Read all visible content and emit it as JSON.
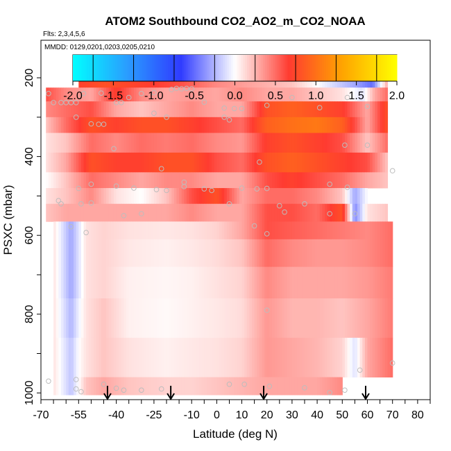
{
  "chart_data": {
    "type": "heatmap",
    "title": "ATOM2 Southbound CO2_AO2_m_CO2_NOAA",
    "flights_note": "Flts: 2,3,4,5,6",
    "dates_note": "MMDD: 0129,0201,0203,0205,0210",
    "xlabel": "Latitude (deg N)",
    "ylabel": "PSXC (mbar)",
    "xlim": [
      -70,
      85
    ],
    "ylim": [
      1010,
      140
    ],
    "x_ticks": [
      "-70",
      "-55",
      "-40",
      "-25",
      "-10",
      "0",
      "10",
      "20",
      "30",
      "40",
      "50",
      "60",
      "70",
      "80"
    ],
    "x_tick_values": [
      -70,
      -55,
      -40,
      -25,
      -10,
      0,
      10,
      20,
      30,
      40,
      50,
      60,
      70,
      80
    ],
    "y_ticks": [
      "200",
      "400",
      "600",
      "800",
      "1000"
    ],
    "y_tick_values": [
      200,
      400,
      600,
      800,
      1000
    ],
    "colorbar": {
      "range": [
        -2.0,
        2.0
      ],
      "ticks": [
        "-2.0",
        "-1.5",
        "-1.0",
        "-0.5",
        "0.0",
        "0.5",
        "1.0",
        "1.5",
        "2.0"
      ],
      "tick_values": [
        -2.0,
        -1.5,
        -1.0,
        -0.5,
        0.0,
        0.5,
        1.0,
        1.5,
        2.0
      ],
      "colors": [
        "#00ffff",
        "#2a9dff",
        "#2f3bff",
        "#ffffff",
        "#ff3b30",
        "#ffa500",
        "#ffff00"
      ]
    },
    "layers": [
      {
        "p_top": 175,
        "p_bot": 225,
        "lat": [
          -55,
          -45,
          -30,
          -15,
          0,
          15,
          30,
          45,
          55,
          62,
          68
        ],
        "values": [
          0.7,
          0.8,
          0.7,
          0.6,
          0.4,
          0.3,
          0.2,
          -0.1,
          -0.3,
          -0.5,
          0.3
        ]
      },
      {
        "p_top": 225,
        "p_bot": 260,
        "lat": [
          -68,
          -60,
          -50,
          -40,
          -30,
          -20,
          -10,
          0,
          10,
          20,
          30,
          40,
          50,
          58,
          63,
          68
        ],
        "values": [
          0.6,
          0.4,
          0.3,
          0.7,
          0.4,
          0.3,
          0.35,
          0.3,
          0.4,
          0.3,
          0.3,
          0.2,
          0.1,
          -0.1,
          0.3,
          0.5
        ]
      },
      {
        "p_top": 260,
        "p_bot": 300,
        "lat": [
          -68,
          -60,
          -50,
          -40,
          -30,
          -20,
          -10,
          0,
          10,
          20,
          30,
          40,
          50,
          60,
          68
        ],
        "values": [
          0.4,
          0.5,
          0.6,
          0.3,
          0.2,
          0.3,
          0.4,
          0.3,
          0.3,
          0.8,
          0.9,
          0.8,
          0.7,
          0.3,
          0.8
        ]
      },
      {
        "p_top": 300,
        "p_bot": 340,
        "lat": [
          -68,
          -60,
          -50,
          -40,
          -30,
          -20,
          -10,
          0,
          10,
          20,
          30,
          40,
          50,
          60,
          68
        ],
        "values": [
          0.2,
          0.5,
          0.8,
          0.7,
          0.8,
          0.8,
          0.7,
          0.6,
          0.5,
          0.9,
          1.0,
          1.05,
          0.9,
          0.3,
          0.8
        ]
      },
      {
        "p_top": 340,
        "p_bot": 390,
        "lat": [
          -68,
          -60,
          -50,
          -40,
          -30,
          -20,
          -10,
          0,
          10,
          20,
          30,
          40,
          50,
          60,
          68
        ],
        "values": [
          0.1,
          0.2,
          0.5,
          0.4,
          0.5,
          0.45,
          0.5,
          0.4,
          0.35,
          0.7,
          0.8,
          0.7,
          0.6,
          0.2,
          0.5
        ]
      },
      {
        "p_top": 390,
        "p_bot": 440,
        "lat": [
          -68,
          -60,
          -50,
          -40,
          -30,
          -20,
          -10,
          0,
          10,
          20,
          30,
          40,
          50,
          60,
          68
        ],
        "values": [
          0.1,
          0.3,
          0.8,
          0.7,
          0.7,
          0.8,
          0.8,
          0.6,
          0.5,
          0.8,
          0.9,
          0.8,
          0.7,
          0.6,
          0.2
        ]
      },
      {
        "p_top": 440,
        "p_bot": 480,
        "lat": [
          -68,
          -60,
          -50,
          -40,
          -30,
          -20,
          -10,
          0,
          10,
          20,
          30,
          40,
          50,
          60,
          68
        ],
        "values": [
          0.0,
          0.2,
          0.5,
          0.4,
          0.3,
          0.4,
          0.4,
          0.3,
          0.3,
          0.6,
          0.7,
          0.6,
          0.5,
          0.3,
          0.2
        ]
      },
      {
        "p_top": 480,
        "p_bot": 520,
        "lat": [
          -68,
          -60,
          -50,
          -40,
          -30,
          -20,
          -10,
          0,
          10,
          20,
          30,
          40,
          50,
          55,
          60
        ],
        "values": [
          0.1,
          0.2,
          0.4,
          0.1,
          0.0,
          0.2,
          0.6,
          0.8,
          0.3,
          0.5,
          0.5,
          0.4,
          0.2,
          -0.3,
          0.0
        ]
      },
      {
        "p_top": 520,
        "p_bot": 565,
        "lat": [
          -68,
          -60,
          -50,
          -40,
          -30,
          -20,
          -10,
          0,
          10,
          20,
          30,
          40,
          50,
          55,
          60,
          68
        ],
        "values": [
          0.2,
          0.3,
          0.3,
          0.3,
          0.3,
          0.3,
          0.4,
          0.3,
          0.3,
          0.6,
          0.6,
          0.5,
          0.8,
          -0.4,
          0.1,
          0.2
        ]
      },
      {
        "p_top": 565,
        "p_bot": 610,
        "lat": [
          -65,
          -58,
          -55,
          -52,
          -45,
          -35,
          -20,
          -10,
          0,
          10,
          20,
          30,
          40,
          50,
          60,
          70
        ],
        "values": [
          0.1,
          -0.3,
          -0.1,
          0.1,
          0.15,
          0.1,
          0.08,
          0.1,
          0.15,
          0.3,
          0.6,
          0.55,
          0.5,
          0.45,
          0.4,
          0.5
        ]
      },
      {
        "p_top": 610,
        "p_bot": 680,
        "lat": [
          -65,
          -58,
          -55,
          -52,
          -45,
          -35,
          -20,
          -10,
          0,
          10,
          20,
          30,
          40,
          50,
          60,
          70
        ],
        "values": [
          0.1,
          -0.3,
          -0.1,
          0.1,
          0.15,
          0.08,
          0.05,
          0.08,
          0.12,
          0.2,
          0.5,
          0.4,
          0.35,
          0.35,
          0.4,
          0.5
        ]
      },
      {
        "p_top": 680,
        "p_bot": 760,
        "lat": [
          -65,
          -58,
          -55,
          -52,
          -45,
          -35,
          -20,
          -10,
          0,
          10,
          20,
          30,
          40,
          50,
          60,
          70
        ],
        "values": [
          0.1,
          -0.3,
          -0.1,
          0.1,
          0.15,
          0.05,
          0.03,
          0.05,
          0.1,
          0.15,
          0.4,
          0.3,
          0.3,
          0.3,
          0.35,
          0.45
        ]
      },
      {
        "p_top": 760,
        "p_bot": 860,
        "lat": [
          -65,
          -58,
          -55,
          -52,
          -45,
          -35,
          -20,
          -10,
          0,
          10,
          20,
          30,
          40,
          50,
          60,
          70
        ],
        "values": [
          0.1,
          -0.25,
          -0.05,
          0.1,
          0.2,
          0.05,
          0.02,
          0.05,
          0.08,
          0.12,
          0.35,
          0.25,
          0.25,
          0.2,
          0.3,
          0.45
        ]
      },
      {
        "p_top": 860,
        "p_bot": 960,
        "lat": [
          -65,
          -58,
          -55,
          -52,
          -45,
          -35,
          -20,
          -10,
          0,
          10,
          20,
          30,
          40,
          50,
          55,
          60,
          70
        ],
        "values": [
          0.1,
          -0.2,
          0.0,
          0.1,
          0.2,
          0.1,
          0.05,
          0.08,
          0.1,
          0.15,
          0.35,
          0.3,
          0.25,
          0.15,
          -0.1,
          0.3,
          0.5
        ]
      },
      {
        "p_top": 960,
        "p_bot": 1005,
        "lat": [
          -65,
          -58,
          -55,
          -52,
          -45,
          -35,
          -20,
          -10,
          0,
          10,
          20,
          30,
          40,
          50
        ],
        "values": [
          0.1,
          -0.2,
          0.0,
          0.2,
          0.3,
          0.2,
          0.15,
          0.15,
          0.2,
          0.25,
          0.3,
          0.3,
          0.3,
          0.4
        ]
      }
    ],
    "sample_points": [
      {
        "lat": -67,
        "p": 240
      },
      {
        "lat": -65,
        "p": 263
      },
      {
        "lat": -62,
        "p": 263
      },
      {
        "lat": -60,
        "p": 263
      },
      {
        "lat": -58,
        "p": 263
      },
      {
        "lat": -56,
        "p": 263
      },
      {
        "lat": -53,
        "p": 240
      },
      {
        "lat": -49,
        "p": 202
      },
      {
        "lat": -46,
        "p": 239
      },
      {
        "lat": -40,
        "p": 263
      },
      {
        "lat": -38,
        "p": 263
      },
      {
        "lat": -35,
        "p": 250
      },
      {
        "lat": -30,
        "p": 240
      },
      {
        "lat": -25,
        "p": 238
      },
      {
        "lat": -18,
        "p": 230
      },
      {
        "lat": -16,
        "p": 227
      },
      {
        "lat": -14,
        "p": 228
      },
      {
        "lat": -12,
        "p": 227
      },
      {
        "lat": -10,
        "p": 228
      },
      {
        "lat": -5,
        "p": 262
      },
      {
        "lat": 3,
        "p": 277
      },
      {
        "lat": 7,
        "p": 278
      },
      {
        "lat": 10,
        "p": 278
      },
      {
        "lat": 20,
        "p": 270
      },
      {
        "lat": 30,
        "p": 250
      },
      {
        "lat": 41,
        "p": 276
      },
      {
        "lat": 52,
        "p": 250
      },
      {
        "lat": 60,
        "p": 273
      },
      {
        "lat": -56,
        "p": 300
      },
      {
        "lat": -50,
        "p": 317
      },
      {
        "lat": -47,
        "p": 318
      },
      {
        "lat": -45,
        "p": 318
      },
      {
        "lat": -25,
        "p": 290
      },
      {
        "lat": -20,
        "p": 300
      },
      {
        "lat": 3,
        "p": 300
      },
      {
        "lat": 5,
        "p": 307
      },
      {
        "lat": -41,
        "p": 380
      },
      {
        "lat": 17,
        "p": 414
      },
      {
        "lat": 51,
        "p": 371
      },
      {
        "lat": 60,
        "p": 371
      },
      {
        "lat": 70,
        "p": 436
      },
      {
        "lat": -22,
        "p": 431
      },
      {
        "lat": -13,
        "p": 465
      },
      {
        "lat": -13,
        "p": 476
      },
      {
        "lat": -63,
        "p": 512
      },
      {
        "lat": -62,
        "p": 520
      },
      {
        "lat": -55,
        "p": 481
      },
      {
        "lat": -50,
        "p": 470
      },
      {
        "lat": -40,
        "p": 475
      },
      {
        "lat": -33,
        "p": 480
      },
      {
        "lat": -24,
        "p": 484
      },
      {
        "lat": -20,
        "p": 486
      },
      {
        "lat": -5,
        "p": 482
      },
      {
        "lat": -2,
        "p": 486
      },
      {
        "lat": 10,
        "p": 480
      },
      {
        "lat": 16,
        "p": 482
      },
      {
        "lat": 20,
        "p": 481
      },
      {
        "lat": 45,
        "p": 470
      },
      {
        "lat": 52,
        "p": 478
      },
      {
        "lat": -54,
        "p": 520
      },
      {
        "lat": -50,
        "p": 518
      },
      {
        "lat": -37,
        "p": 550
      },
      {
        "lat": -30,
        "p": 545
      },
      {
        "lat": 5,
        "p": 520
      },
      {
        "lat": 25,
        "p": 525
      },
      {
        "lat": 35,
        "p": 520
      },
      {
        "lat": 45,
        "p": 545
      },
      {
        "lat": 55,
        "p": 545
      },
      {
        "lat": -58,
        "p": 578
      },
      {
        "lat": -52,
        "p": 593
      },
      {
        "lat": 15,
        "p": 576
      },
      {
        "lat": 20,
        "p": 596
      },
      {
        "lat": 27,
        "p": 541
      },
      {
        "lat": 20,
        "p": 790
      },
      {
        "lat": 57,
        "p": 942
      },
      {
        "lat": 70,
        "p": 924
      },
      {
        "lat": -67,
        "p": 970
      },
      {
        "lat": -56,
        "p": 966
      },
      {
        "lat": -45,
        "p": 978
      },
      {
        "lat": -40,
        "p": 988
      },
      {
        "lat": -37,
        "p": 993
      },
      {
        "lat": -30,
        "p": 993
      },
      {
        "lat": -22,
        "p": 990
      },
      {
        "lat": 5,
        "p": 978
      },
      {
        "lat": 11,
        "p": 978
      },
      {
        "lat": 21,
        "p": 983
      },
      {
        "lat": 35,
        "p": 987
      },
      {
        "lat": 45,
        "p": 999
      },
      {
        "lat": 51,
        "p": 993
      },
      {
        "lat": -56,
        "p": 990
      },
      {
        "lat": -54,
        "p": 997
      }
    ],
    "arrow_markers": [
      {
        "lat": -43.5
      },
      {
        "lat": -18.3
      },
      {
        "lat": 18.7
      },
      {
        "lat": 59.3
      }
    ]
  }
}
